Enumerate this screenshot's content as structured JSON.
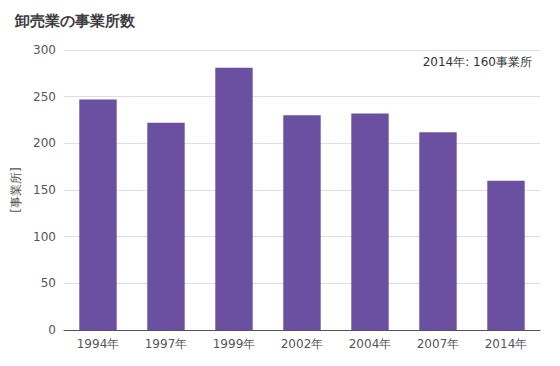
{
  "chart_data": {
    "type": "bar",
    "title": "卸売業の事業所数",
    "ylabel": "[事業所]",
    "annotation": "2014年: 160事業所",
    "categories": [
      "1994年",
      "1997年",
      "1999年",
      "2002年",
      "2004年",
      "2007年",
      "2014年"
    ],
    "values": [
      247,
      222,
      281,
      230,
      232,
      212,
      160
    ],
    "color": "#6b4fa0",
    "ylim": [
      0,
      300
    ],
    "yticks": [
      0,
      50,
      100,
      150,
      200,
      250,
      300
    ],
    "grid": true
  }
}
